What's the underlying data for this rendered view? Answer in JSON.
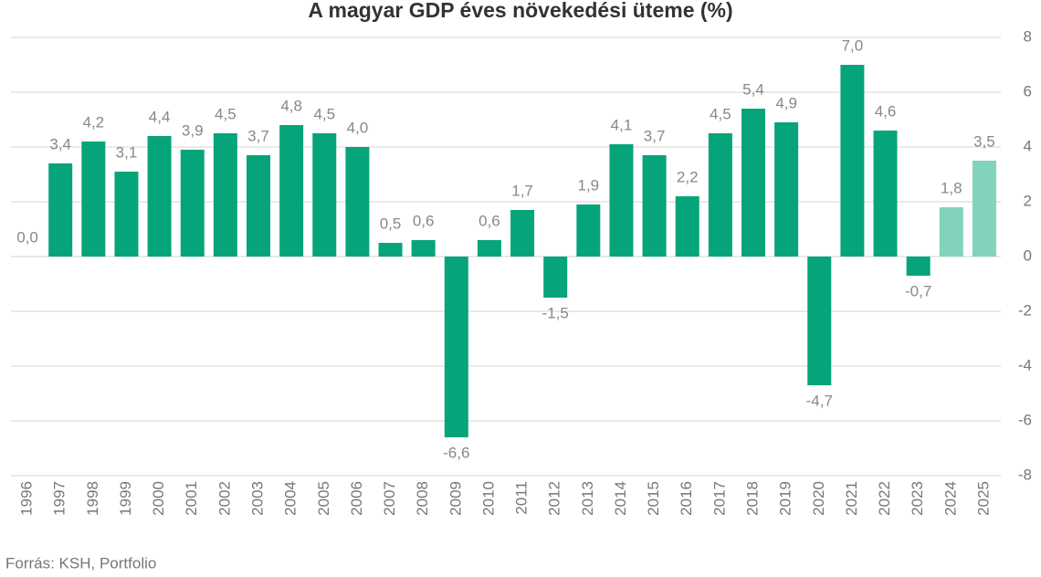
{
  "chart_data": {
    "type": "bar",
    "title": "A magyar GDP éves növekedési üteme (%)",
    "source": "Forrás: KSH, Portfolio",
    "categories": [
      "1996",
      "1997",
      "1998",
      "1999",
      "2000",
      "2001",
      "2002",
      "2003",
      "2004",
      "2005",
      "2006",
      "2007",
      "2008",
      "2009",
      "2010",
      "2011",
      "2012",
      "2013",
      "2014",
      "2015",
      "2016",
      "2017",
      "2018",
      "2019",
      "2020",
      "2021",
      "2022",
      "2023",
      "2024",
      "2025"
    ],
    "values": [
      0,
      3.4,
      4.2,
      3.1,
      4.4,
      3.9,
      4.5,
      3.7,
      4.8,
      4.5,
      4.0,
      0.5,
      0.6,
      -6.6,
      0.6,
      1.7,
      -1.5,
      1.9,
      4.1,
      3.7,
      2.2,
      4.5,
      5.4,
      4.9,
      -4.7,
      7.0,
      4.6,
      -0.7,
      1.8,
      3.5
    ],
    "value_labels": [
      "0,0",
      "3,4",
      "4,2",
      "3,1",
      "4,4",
      "3,9",
      "4,5",
      "3,7",
      "4,8",
      "4,5",
      "4,0",
      "0,5",
      "0,6",
      "-6,6",
      "0,6",
      "1,7",
      "-1,5",
      "1,9",
      "4,1",
      "3,7",
      "2,2",
      "4,5",
      "5,4",
      "4,9",
      "-4,7",
      "7,0",
      "4,6",
      "-0,7",
      "1,8",
      "3,5"
    ],
    "colors": [
      "#06a47a",
      "#06a47a",
      "#06a47a",
      "#06a47a",
      "#06a47a",
      "#06a47a",
      "#06a47a",
      "#06a47a",
      "#06a47a",
      "#06a47a",
      "#06a47a",
      "#06a47a",
      "#06a47a",
      "#06a47a",
      "#06a47a",
      "#06a47a",
      "#06a47a",
      "#06a47a",
      "#06a47a",
      "#06a47a",
      "#06a47a",
      "#06a47a",
      "#06a47a",
      "#06a47a",
      "#06a47a",
      "#06a47a",
      "#06a47a",
      "#06a47a",
      "#82d3bd",
      "#82d3bd"
    ],
    "ylim": [
      -8,
      8
    ],
    "yticks": [
      -8,
      -6,
      -4,
      -2,
      0,
      2,
      4,
      6,
      8
    ],
    "grid": true
  }
}
